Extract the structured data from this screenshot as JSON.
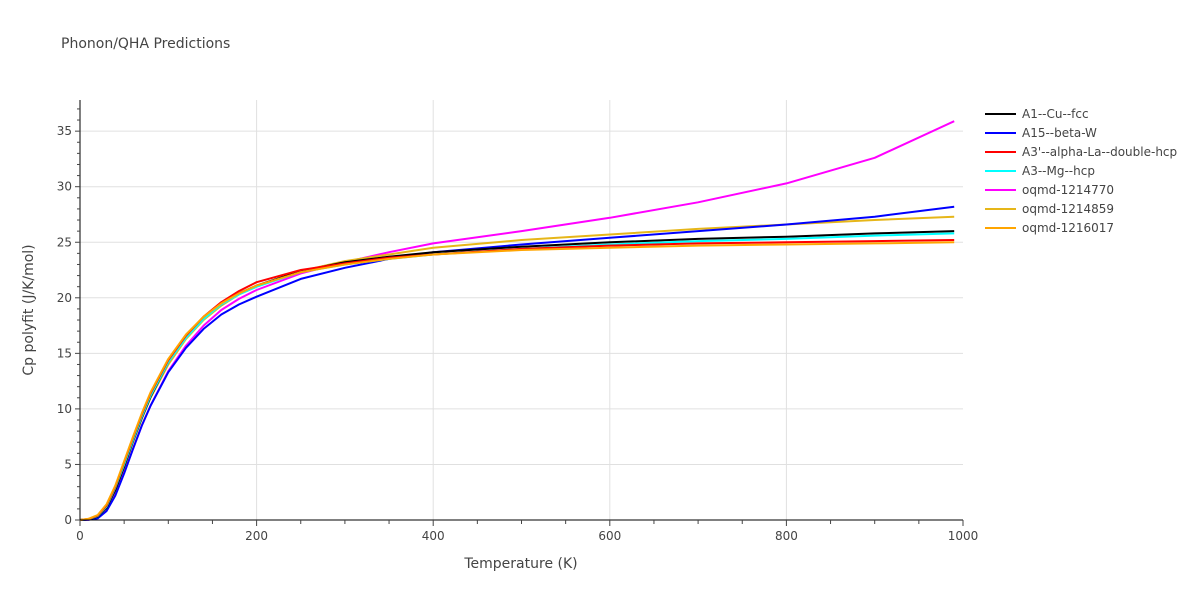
{
  "title": "Phonon/QHA Predictions",
  "chart_data": {
    "type": "line",
    "title": "Phonon/QHA Predictions",
    "xlabel": "Temperature (K)",
    "ylabel": "Cp polyfit (J/K/mol)",
    "xlim": [
      0,
      1000
    ],
    "ylim": [
      0,
      37.8
    ],
    "xticks": [
      0,
      200,
      400,
      600,
      800,
      1000
    ],
    "yticks": [
      0,
      5,
      10,
      15,
      20,
      25,
      30,
      35
    ],
    "grid": true,
    "legend_position": "right",
    "x": [
      0,
      10,
      20,
      30,
      40,
      50,
      60,
      70,
      80,
      100,
      120,
      140,
      160,
      180,
      200,
      250,
      300,
      350,
      400,
      500,
      600,
      700,
      800,
      900,
      990
    ],
    "series": [
      {
        "name": "A1--Cu--fcc",
        "color": "#000000",
        "values": [
          0,
          0.05,
          0.3,
          1.1,
          2.7,
          4.8,
          7.1,
          9.2,
          11.1,
          14.2,
          16.5,
          18.2,
          19.4,
          20.4,
          21.1,
          22.4,
          23.2,
          23.7,
          24.1,
          24.6,
          25.0,
          25.3,
          25.5,
          25.8,
          26.0
        ]
      },
      {
        "name": "A15--beta-W",
        "color": "#0000ff",
        "values": [
          0,
          0.02,
          0.15,
          0.8,
          2.2,
          4.2,
          6.4,
          8.5,
          10.3,
          13.3,
          15.5,
          17.2,
          18.5,
          19.4,
          20.1,
          21.7,
          22.7,
          23.5,
          24.1,
          24.8,
          25.4,
          26.0,
          26.6,
          27.3,
          28.2
        ]
      },
      {
        "name": "A3'--alpha-La--double-hcp",
        "color": "#ff0000",
        "values": [
          0,
          0.1,
          0.4,
          1.3,
          3.0,
          5.2,
          7.4,
          9.5,
          11.4,
          14.4,
          16.6,
          18.3,
          19.6,
          20.6,
          21.4,
          22.5,
          23.1,
          23.6,
          23.9,
          24.4,
          24.7,
          24.9,
          25.0,
          25.1,
          25.2
        ]
      },
      {
        "name": "A3--Mg--hcp",
        "color": "#00ffff",
        "values": [
          0,
          0.08,
          0.35,
          1.2,
          2.9,
          5.0,
          7.2,
          9.3,
          11.2,
          14.2,
          16.4,
          18.1,
          19.4,
          20.3,
          21.0,
          22.3,
          23.0,
          23.5,
          23.9,
          24.4,
          24.8,
          25.1,
          25.3,
          25.6,
          25.8
        ]
      },
      {
        "name": "oqmd-1214770",
        "color": "#ff00ff",
        "values": [
          0,
          0.03,
          0.2,
          0.9,
          2.3,
          4.3,
          6.4,
          8.5,
          10.3,
          13.4,
          15.7,
          17.5,
          18.9,
          19.9,
          20.7,
          22.2,
          23.2,
          24.1,
          24.9,
          26.0,
          27.2,
          28.6,
          30.3,
          32.6,
          35.9
        ]
      },
      {
        "name": "oqmd-1214859",
        "color": "#e6b619",
        "values": [
          0,
          0.06,
          0.3,
          1.1,
          2.7,
          4.8,
          7.0,
          9.1,
          11.0,
          14.0,
          16.3,
          18.0,
          19.3,
          20.3,
          21.0,
          22.4,
          23.3,
          23.9,
          24.5,
          25.2,
          25.7,
          26.2,
          26.6,
          27.0,
          27.3
        ]
      },
      {
        "name": "oqmd-1216017",
        "color": "#ffa500",
        "values": [
          0,
          0.12,
          0.45,
          1.4,
          3.1,
          5.3,
          7.5,
          9.6,
          11.5,
          14.5,
          16.7,
          18.3,
          19.5,
          20.4,
          21.1,
          22.3,
          23.0,
          23.5,
          23.9,
          24.3,
          24.5,
          24.7,
          24.8,
          24.9,
          25.0
        ]
      }
    ]
  }
}
